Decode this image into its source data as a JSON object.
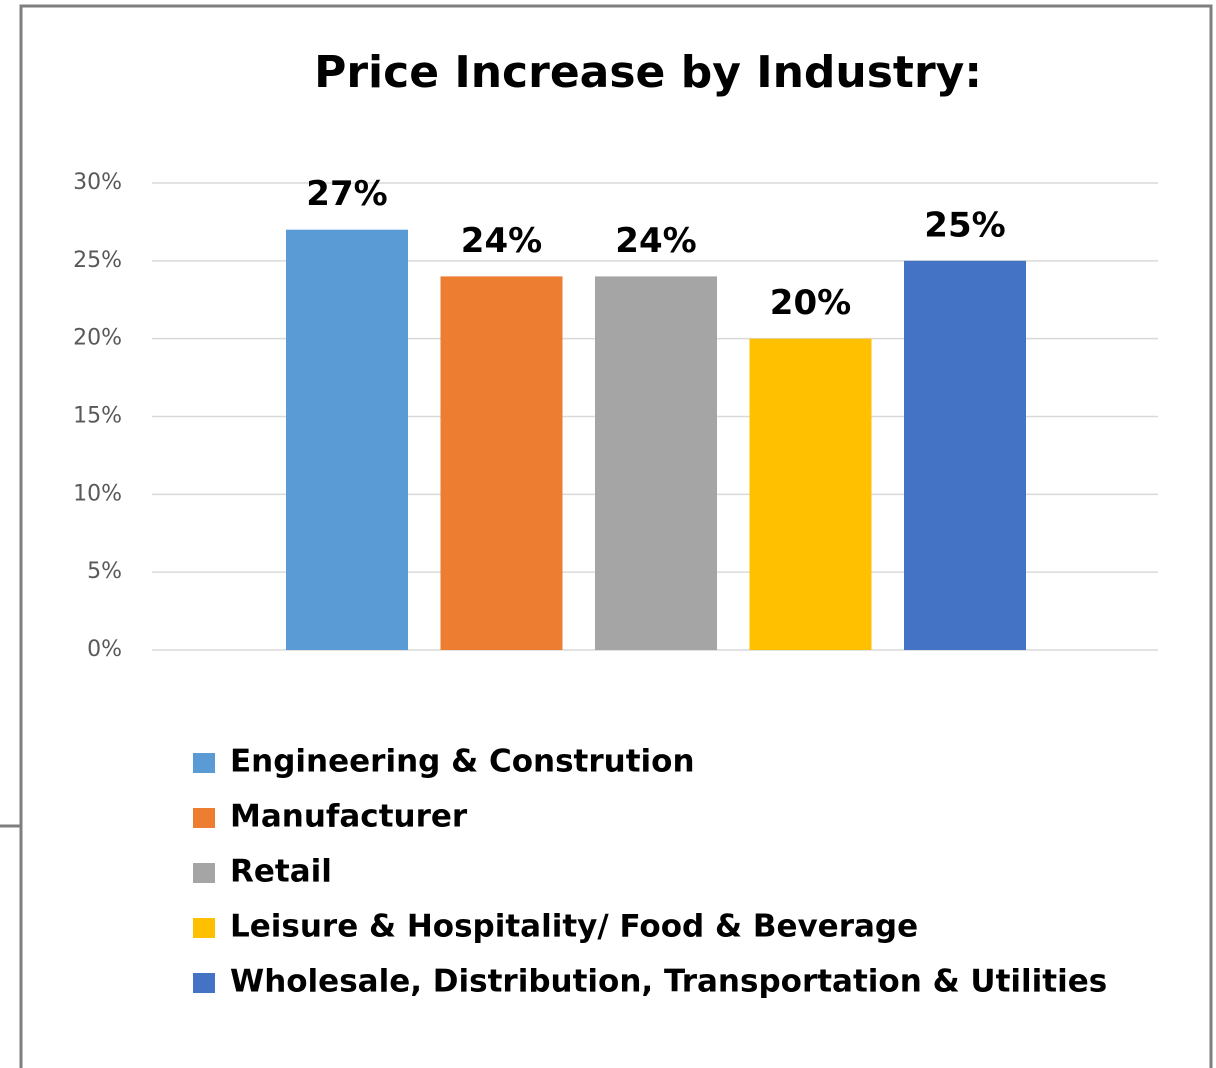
{
  "chart_data": {
    "type": "bar",
    "title": "Price Increase by Industry:",
    "categories": [
      null
    ],
    "series": [
      {
        "name": "Engineering & Constrution",
        "color": "#5b9bd5",
        "values": [
          27
        ],
        "value_labels": [
          "27%"
        ]
      },
      {
        "name": "Manufacturer",
        "color": "#ed7d31",
        "values": [
          24
        ],
        "value_labels": [
          "24%"
        ]
      },
      {
        "name": "Retail",
        "color": "#a5a5a5",
        "values": [
          24
        ],
        "value_labels": [
          "24%"
        ]
      },
      {
        "name": "Leisure & Hospitality/ Food & Beverage",
        "color": "#ffc000",
        "values": [
          20
        ],
        "value_labels": [
          "20%"
        ]
      },
      {
        "name": "Wholesale, Distribution, Transportation & Utilities",
        "color": "#4472c4",
        "values": [
          25
        ],
        "value_labels": [
          "25%"
        ]
      }
    ],
    "ylim": [
      0,
      30
    ],
    "yticks": [
      {
        "value": 0,
        "label": "0%"
      },
      {
        "value": 5,
        "label": "5%"
      },
      {
        "value": 10,
        "label": "10%"
      },
      {
        "value": 15,
        "label": "15%"
      },
      {
        "value": 20,
        "label": "20%"
      },
      {
        "value": 25,
        "label": "25%"
      },
      {
        "value": 30,
        "label": "30%"
      }
    ],
    "grid": true,
    "legend": "bottom"
  }
}
